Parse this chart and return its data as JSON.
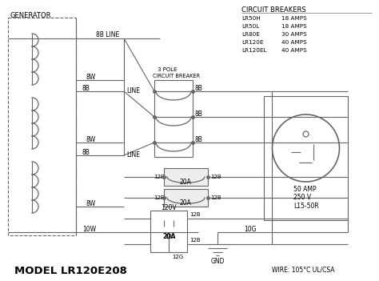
{
  "bg_color": "#ffffff",
  "line_color": "#666666",
  "title": "MODEL LR120E208",
  "wire_note": "WIRE: 105°C UL/CSA",
  "gnd_label": "GND",
  "generator_label": "GENERATOR",
  "cb_title": "CIRCUIT BREAKERS",
  "cb_entries": [
    [
      "LR50H",
      "18 AMPS"
    ],
    [
      "LR50L",
      "18 AMPS"
    ],
    [
      "LR80E",
      "30 AMPS"
    ],
    [
      "LR120E",
      "40 AMPS"
    ],
    [
      "LR120EL",
      "40 AMPS"
    ]
  ],
  "pole_label_1": "3 POLE",
  "pole_label_2": "CIRCUIT BREAKER",
  "outlet_label": "50 AMP\n250 V\nL15-50R",
  "outlet_120v": "120V",
  "outlet_20a": "20A",
  "gnd_wires": [
    "10W",
    "12G",
    "10G"
  ]
}
